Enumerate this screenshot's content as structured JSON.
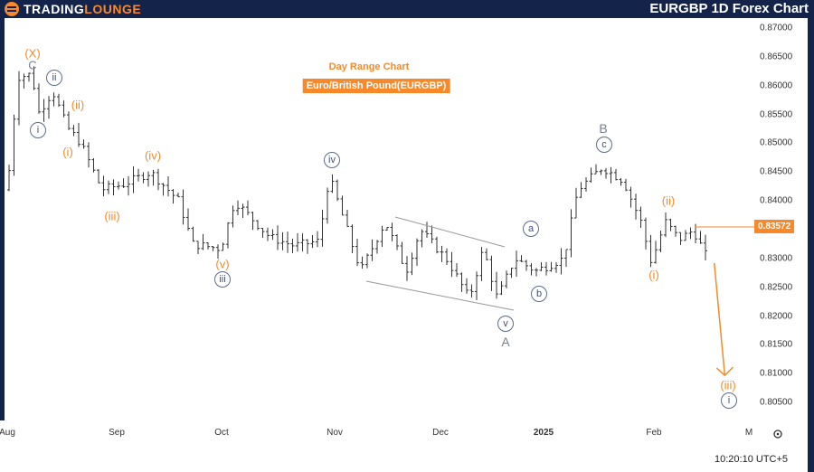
{
  "header": {
    "logo_part1": "TRADING",
    "logo_part2": "LOUNGE",
    "title": "EURGBP 1D Forex Chart"
  },
  "chart_data": {
    "type": "ohlc",
    "title": "Day Range Chart",
    "subtitle": "Euro/British Pound(EURGBP)",
    "ylim": [
      0.802,
      0.872
    ],
    "yticks": [
      "0.87000",
      "0.86500",
      "0.86000",
      "0.85500",
      "0.85000",
      "0.84500",
      "0.84000",
      "0.83500",
      "0.83000",
      "0.82500",
      "0.82000",
      "0.81500",
      "0.81000",
      "0.80500"
    ],
    "xticks": [
      "Aug",
      "Sep",
      "Oct",
      "Nov",
      "Dec",
      "2025",
      "Feb",
      "M"
    ],
    "last_price": "0.83572",
    "path": [
      [
        "2024-08-01",
        0.8419
      ],
      [
        "2024-08-04",
        0.8615
      ],
      [
        "2024-08-08",
        0.862
      ],
      [
        "2024-08-10",
        0.8553
      ],
      [
        "2024-08-14",
        0.859
      ],
      [
        "2024-08-18",
        0.8529
      ],
      [
        "2024-08-22",
        0.85
      ],
      [
        "2024-08-28",
        0.842
      ],
      [
        "2024-09-03",
        0.8428
      ],
      [
        "2024-09-11",
        0.845
      ],
      [
        "2024-09-19",
        0.84
      ],
      [
        "2024-09-23",
        0.8325
      ],
      [
        "2024-10-01",
        0.8317
      ],
      [
        "2024-10-05",
        0.84
      ],
      [
        "2024-10-15",
        0.8337
      ],
      [
        "2024-10-22",
        0.8322
      ],
      [
        "2024-10-29",
        0.833
      ],
      [
        "2024-11-01",
        0.8443
      ],
      [
        "2024-11-05",
        0.837
      ],
      [
        "2024-11-10",
        0.8278
      ],
      [
        "2024-11-17",
        0.8364
      ],
      [
        "2024-11-23",
        0.8278
      ],
      [
        "2024-11-27",
        0.835
      ],
      [
        "2024-12-05",
        0.8295
      ],
      [
        "2024-12-11",
        0.823
      ],
      [
        "2024-12-15",
        0.8317
      ],
      [
        "2024-12-19",
        0.823
      ],
      [
        "2024-12-24",
        0.83
      ],
      [
        "2024-12-30",
        0.8278
      ],
      [
        "2025-01-07",
        0.83
      ],
      [
        "2025-01-11",
        0.8419
      ],
      [
        "2025-01-18",
        0.8458
      ],
      [
        "2025-01-24",
        0.8435
      ],
      [
        "2025-01-29",
        0.8364
      ],
      [
        "2025-02-01",
        0.8293
      ],
      [
        "2025-02-05",
        0.8364
      ],
      [
        "2025-02-09",
        0.8333
      ],
      [
        "2025-02-13",
        0.8349
      ],
      [
        "2025-02-17",
        0.83
      ]
    ],
    "projection": [
      [
        "2025-02-19",
        0.8295
      ],
      [
        "2025-02-22",
        0.8097
      ]
    ],
    "colors": {
      "wave_orange": "#f7892a",
      "wave_navy": "#3f5075",
      "wave_grey": "#76808f",
      "bars": "#333333"
    }
  },
  "labels": {
    "X": "(X)",
    "C": "C",
    "ii_c": "ii",
    "i_c": "i",
    "ii_o": "(ii)",
    "i_o": "(i)",
    "iv_o": "(iv)",
    "iii_o": "(iii)",
    "iv_c": "iv",
    "v_o": "(v)",
    "iii_c": "iii",
    "a": "a",
    "b": "b",
    "v_c": "v",
    "A": "A",
    "c": "c",
    "B": "B",
    "ii_o2": "(ii)",
    "i_o2": "(i)",
    "iii_o2": "(iii)",
    "i_c2": "i"
  },
  "footer": {
    "clock": "10:20:10 UTC+5"
  }
}
